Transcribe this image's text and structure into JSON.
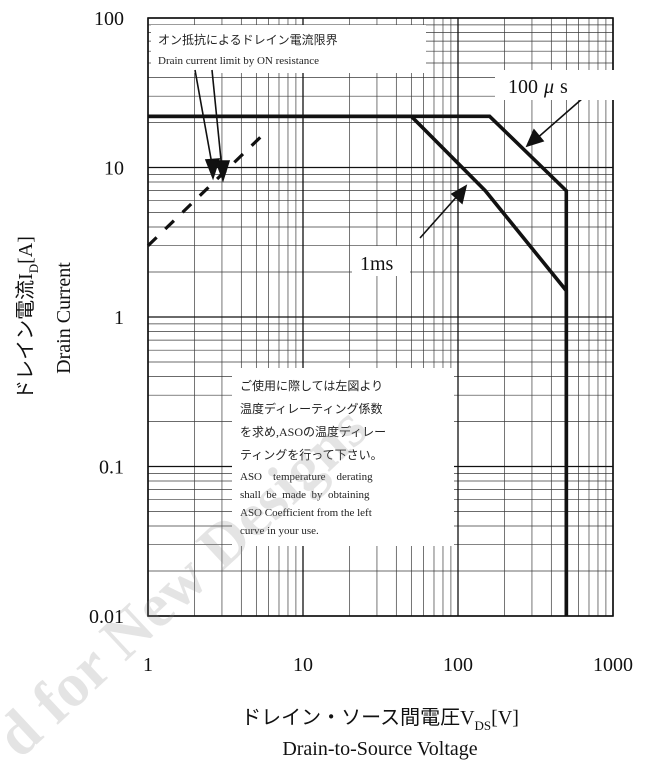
{
  "chart_data": {
    "type": "line",
    "xscale": "log",
    "yscale": "log",
    "xlim": [
      1,
      1000
    ],
    "ylim": [
      0.01,
      100
    ],
    "grid": true,
    "x_ticks": [
      "1",
      "10",
      "100",
      "1000"
    ],
    "y_ticks": [
      "100",
      "10",
      "1",
      "0.1",
      "0.01"
    ],
    "xlabel_jp": "ドレイン・ソース間電圧V",
    "xlabel_sub": "DS",
    "xlabel_unit": "[V]",
    "xlabel_en": "Drain-to-Source Voltage",
    "ylabel_jp": "ドレイン電流I",
    "ylabel_sub": "D",
    "ylabel_unit": "[A]",
    "ylabel_en": "Drain Current",
    "series": [
      {
        "name": "100μs",
        "label_prefix": "100",
        "label_mu": "μ",
        "label_suffix": "s",
        "points": [
          [
            1,
            22
          ],
          [
            160,
            22
          ],
          [
            500,
            7
          ],
          [
            500,
            0.01
          ]
        ]
      },
      {
        "name": "1ms",
        "points": [
          [
            1,
            22
          ],
          [
            50,
            22
          ],
          [
            150,
            7
          ],
          [
            500,
            1.5
          ],
          [
            500,
            0.01
          ]
        ]
      },
      {
        "name": "on-resistance-limit",
        "style": "dashed",
        "points": [
          [
            1,
            3
          ],
          [
            6,
            18
          ]
        ]
      }
    ],
    "annotations": {
      "on_resistance_jp": "オン抵抗によるドレイン電流限界",
      "on_resistance_en": "Drain current limit by ON resistance",
      "note_jp": [
        "ご使用に際しては左図より",
        "温度ディレーティング係数",
        "を求め,ASOの温度ディレー",
        "ティングを行って下さい。"
      ],
      "note_en": [
        "ASO    temperature    derating",
        "shall  be  made  by  obtaining",
        "ASO Coefficient from the left",
        "curve in your use."
      ]
    },
    "watermark": "d for New Designs"
  }
}
